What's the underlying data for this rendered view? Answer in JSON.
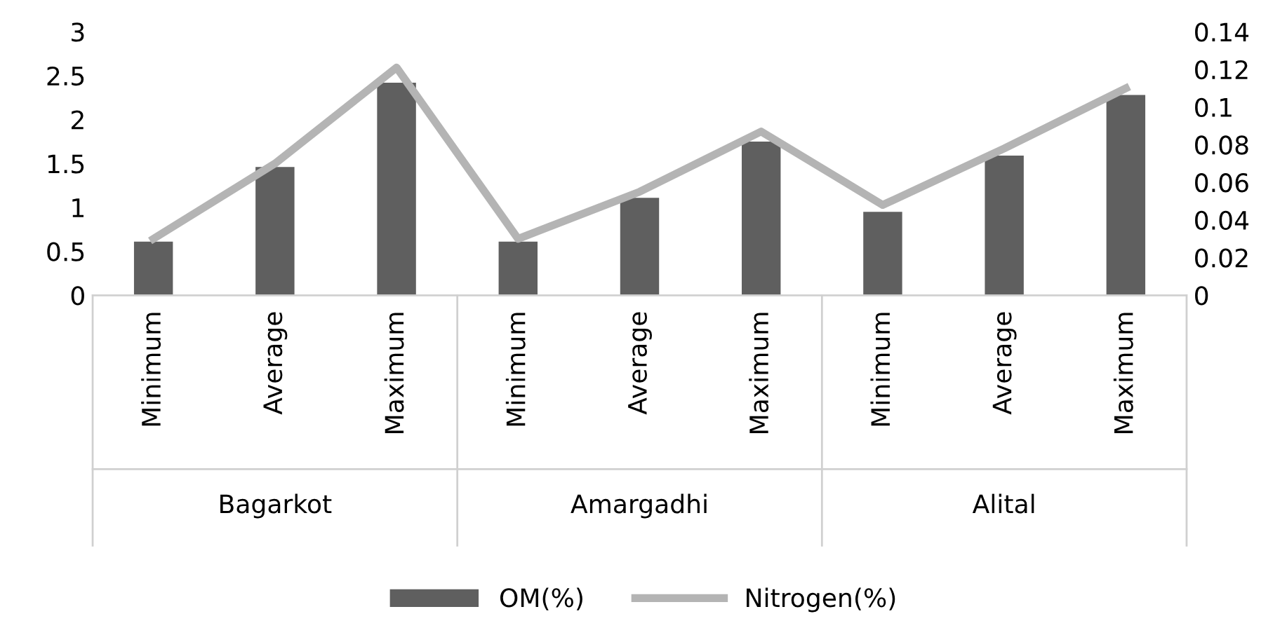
{
  "chart_data": {
    "type": "bar",
    "categories": [
      "Minimum",
      "Average",
      "Maximum",
      "Minimum",
      "Average",
      "Maximum",
      "Minimum",
      "Average",
      "Maximum"
    ],
    "annotations": [
      "Bagarkot",
      "Amargadhi",
      "Alital"
    ],
    "series": [
      {
        "name": "OM(%)",
        "color": "#5f5f5f",
        "values": [
          0.61,
          1.46,
          2.42,
          0.61,
          1.11,
          1.75,
          0.95,
          1.59,
          2.28
        ]
      },
      {
        "name": "Nitrogen(%)",
        "type": "line",
        "axis": "y2",
        "color": "#b4b4b4",
        "values": [
          0.03,
          0.07,
          0.121,
          0.03,
          0.055,
          0.087,
          0.048,
          0.078,
          0.11
        ]
      }
    ],
    "ylim": [
      0,
      3
    ],
    "yticks": [
      0,
      0.5,
      1,
      1.5,
      2,
      2.5,
      3
    ],
    "y2lim": [
      0,
      0.14
    ],
    "y2ticks": [
      0,
      0.02,
      0.04,
      0.06,
      0.08,
      0.1,
      0.12,
      0.14
    ],
    "grid": false,
    "legend": "bottom",
    "marker": "none",
    "line_style": "solid"
  }
}
